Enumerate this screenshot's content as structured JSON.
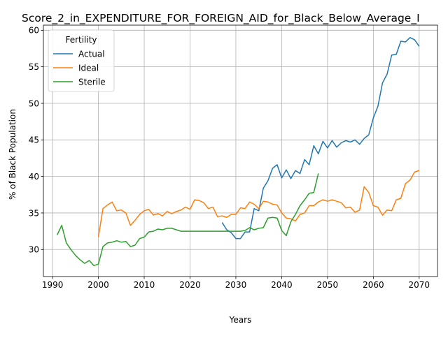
{
  "chart_data": {
    "type": "line",
    "title": "Score_2_in_EXPENDITURE_FOR_FOREIGN_AID_for_Black_Below_Average_I",
    "xlabel": "Years",
    "ylabel": "% of Black Population",
    "xlim": [
      1988,
      2074
    ],
    "ylim": [
      26.3,
      60.7
    ],
    "x_ticks": [
      1990,
      2000,
      2010,
      2020,
      2030,
      2040,
      2050,
      2060,
      2070
    ],
    "y_ticks": [
      30,
      35,
      40,
      45,
      50,
      55,
      60
    ],
    "grid": true,
    "legend": {
      "title": "Fertility",
      "position": "upper left"
    },
    "series": [
      {
        "name": "Actual",
        "color": "#1f77b4",
        "x": [
          2027,
          2028,
          2029,
          2030,
          2031,
          2032,
          2033,
          2034,
          2035,
          2036,
          2037,
          2038,
          2039,
          2040,
          2041,
          2042,
          2043,
          2044,
          2045,
          2046,
          2047,
          2048,
          2049,
          2050,
          2051,
          2052,
          2053,
          2054,
          2055,
          2056,
          2057,
          2058,
          2059,
          2060,
          2061,
          2062,
          2063,
          2064,
          2065,
          2066,
          2067,
          2068,
          2069,
          2070
        ],
        "y": [
          33.7,
          32.7,
          32.3,
          31.5,
          31.5,
          32.4,
          32.4,
          35.6,
          35.3,
          38.4,
          39.4,
          41.1,
          41.6,
          39.8,
          40.9,
          39.7,
          40.8,
          40.4,
          42.3,
          41.6,
          44.2,
          43.1,
          44.8,
          43.9,
          44.9,
          44.0,
          44.6,
          44.9,
          44.7,
          45.0,
          44.4,
          45.2,
          45.7,
          48.0,
          49.6,
          52.8,
          54.0,
          56.6,
          56.7,
          58.5,
          58.4,
          59.0,
          58.7,
          57.8
        ]
      },
      {
        "name": "Ideal",
        "color": "#ff7f0e",
        "x": [
          2000,
          2001,
          2002,
          2003,
          2004,
          2005,
          2006,
          2007,
          2008,
          2009,
          2010,
          2011,
          2012,
          2013,
          2014,
          2015,
          2016,
          2017,
          2018,
          2019,
          2020,
          2021,
          2022,
          2023,
          2024,
          2025,
          2026,
          2027,
          2028,
          2029,
          2030,
          2031,
          2032,
          2033,
          2034,
          2035,
          2036,
          2037,
          2038,
          2039,
          2040,
          2041,
          2042,
          2043,
          2044,
          2045,
          2046,
          2047,
          2048,
          2049,
          2050,
          2051,
          2052,
          2053,
          2054,
          2055,
          2056,
          2057,
          2058,
          2059,
          2060,
          2061,
          2062,
          2063,
          2064,
          2065,
          2066,
          2067,
          2068,
          2069,
          2070
        ],
        "y": [
          31.7,
          35.6,
          36.1,
          36.5,
          35.3,
          35.4,
          35.0,
          33.3,
          34.0,
          34.8,
          35.3,
          35.5,
          34.7,
          34.9,
          34.6,
          35.2,
          34.9,
          35.2,
          35.4,
          35.8,
          35.5,
          36.8,
          36.7,
          36.4,
          35.6,
          35.8,
          34.5,
          34.6,
          34.4,
          34.8,
          34.8,
          35.7,
          35.6,
          36.5,
          36.2,
          35.6,
          36.6,
          36.5,
          36.2,
          36.1,
          35.0,
          34.3,
          34.2,
          33.9,
          34.8,
          35.0,
          36.0,
          36.0,
          36.5,
          36.8,
          36.6,
          36.8,
          36.6,
          36.4,
          35.7,
          35.8,
          35.1,
          35.4,
          38.6,
          37.8,
          36.0,
          35.8,
          34.7,
          35.4,
          35.3,
          36.8,
          37.0,
          39.0,
          39.5,
          40.6,
          40.8
        ]
      },
      {
        "name": "Sterile",
        "color": "#2ca02c",
        "x": [
          1991,
          1992,
          1993,
          1994,
          1995,
          1996,
          1997,
          1998,
          1999,
          2000,
          2001,
          2002,
          2003,
          2004,
          2005,
          2006,
          2007,
          2008,
          2009,
          2010,
          2011,
          2012,
          2013,
          2014,
          2015,
          2016,
          2017,
          2018,
          2019,
          2020,
          2021,
          2022,
          2023,
          2024,
          2025,
          2026,
          2027,
          2028,
          2029,
          2030,
          2031,
          2032,
          2033,
          2034,
          2035,
          2036,
          2037,
          2038,
          2039,
          2040,
          2041,
          2042,
          2043,
          2044,
          2045,
          2046,
          2047,
          2048
        ],
        "y": [
          32.0,
          33.3,
          30.9,
          30.0,
          29.2,
          28.6,
          28.1,
          28.5,
          27.8,
          28.0,
          30.4,
          30.9,
          31.0,
          31.2,
          31.0,
          31.1,
          30.4,
          30.6,
          31.5,
          31.7,
          32.4,
          32.5,
          32.8,
          32.7,
          32.9,
          32.9,
          32.7,
          32.5,
          32.5,
          32.5,
          32.5,
          32.5,
          32.5,
          32.5,
          32.5,
          32.5,
          32.5,
          32.5,
          32.5,
          32.5,
          32.5,
          32.6,
          33.0,
          32.7,
          32.9,
          33.0,
          34.3,
          34.4,
          34.3,
          32.6,
          31.9,
          33.8,
          34.8,
          36.0,
          36.8,
          37.7,
          37.8,
          40.4
        ]
      }
    ]
  }
}
